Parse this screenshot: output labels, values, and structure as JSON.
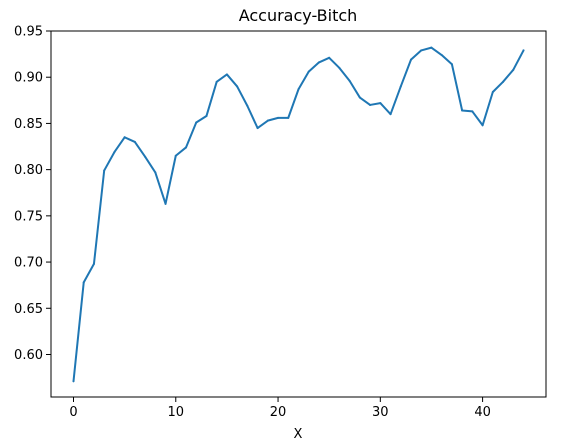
{
  "chart_data": {
    "type": "line",
    "title": "Accuracy-Bitch",
    "xlabel": "X",
    "ylabel": "",
    "xlim": [
      -2.2,
      46.2
    ],
    "ylim": [
      0.554,
      0.95
    ],
    "xticks": [
      0,
      10,
      20,
      30,
      40
    ],
    "yticks": [
      0.6,
      0.65,
      0.7,
      0.75,
      0.8,
      0.85,
      0.9,
      0.95
    ],
    "ytick_labels": [
      "0.60",
      "0.65",
      "0.70",
      "0.75",
      "0.80",
      "0.85",
      "0.90",
      "0.95"
    ],
    "grid": false,
    "series": [
      {
        "color": "#1f77b4",
        "x": [
          0,
          1,
          2,
          3,
          4,
          5,
          6,
          7,
          8,
          9,
          10,
          11,
          12,
          13,
          14,
          15,
          16,
          17,
          18,
          19,
          20,
          21,
          22,
          23,
          24,
          25,
          26,
          27,
          28,
          29,
          30,
          31,
          32,
          33,
          34,
          35,
          36,
          37,
          38,
          39,
          40,
          41,
          42,
          43,
          44
        ],
        "y": [
          0.571,
          0.678,
          0.698,
          0.799,
          0.819,
          0.835,
          0.83,
          0.814,
          0.797,
          0.763,
          0.815,
          0.824,
          0.851,
          0.858,
          0.895,
          0.903,
          0.89,
          0.869,
          0.845,
          0.853,
          0.856,
          0.856,
          0.887,
          0.906,
          0.916,
          0.921,
          0.91,
          0.896,
          0.878,
          0.87,
          0.872,
          0.86,
          0.89,
          0.919,
          0.929,
          0.932,
          0.924,
          0.914,
          0.864,
          0.863,
          0.848,
          0.884,
          0.895,
          0.908,
          0.929
        ]
      }
    ]
  }
}
